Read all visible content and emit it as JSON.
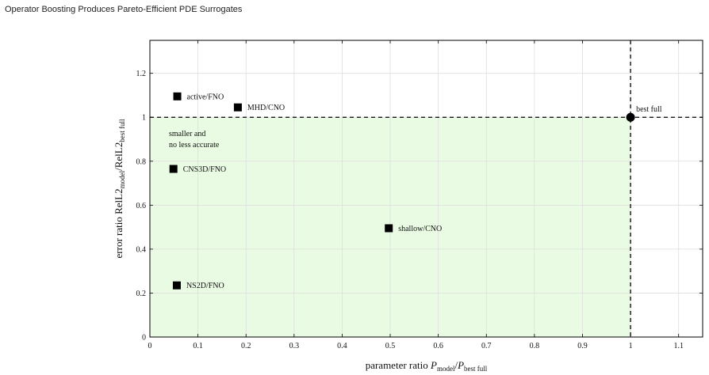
{
  "page_title": "Operator Boosting Produces Pareto-Efficient PDE Surrogates",
  "chart_data": {
    "type": "scatter",
    "xlabel": {
      "main": "parameter ratio ",
      "var": "P",
      "sub1": "model",
      "sep": "/",
      "var2": "P",
      "sub2": "best full"
    },
    "ylabel": {
      "main": "error ratio RelL2",
      "sub1": "model",
      "sep": "/RelL2",
      "sub2": "best full"
    },
    "xlim": [
      0,
      1.15
    ],
    "ylim": [
      0,
      1.35
    ],
    "xticks": [
      {
        "v": 0,
        "label": "0"
      },
      {
        "v": 0.1,
        "label": "0.1"
      },
      {
        "v": 0.2,
        "label": "0.2"
      },
      {
        "v": 0.3,
        "label": "0.3"
      },
      {
        "v": 0.4,
        "label": "0.4"
      },
      {
        "v": 0.5,
        "label": "0.5"
      },
      {
        "v": 0.6,
        "label": "0.6"
      },
      {
        "v": 0.7,
        "label": "0.7"
      },
      {
        "v": 0.8,
        "label": "0.8"
      },
      {
        "v": 0.9,
        "label": "0.9"
      },
      {
        "v": 1.0,
        "label": "1"
      },
      {
        "v": 1.1,
        "label": "1.1"
      }
    ],
    "yticks": [
      {
        "v": 0,
        "label": "0"
      },
      {
        "v": 0.2,
        "label": "0.2"
      },
      {
        "v": 0.4,
        "label": "0.4"
      },
      {
        "v": 0.6,
        "label": "0.6"
      },
      {
        "v": 0.8,
        "label": "0.8"
      },
      {
        "v": 1.0,
        "label": "1"
      },
      {
        "v": 1.2,
        "label": "1.2"
      }
    ],
    "grid": true,
    "region": {
      "label_line1": "smaller and",
      "label_line2": "no less accurate",
      "x_max": 1.0,
      "y_max": 1.0,
      "color": "#e9fbe3"
    },
    "reference_lines": {
      "x": 1.0,
      "y": 1.0
    },
    "points": [
      {
        "label": "active/FNO",
        "x": 0.057,
        "y": 1.095
      },
      {
        "label": "MHD/CNO",
        "x": 0.183,
        "y": 1.045
      },
      {
        "label": "CNS3D/FNO",
        "x": 0.049,
        "y": 0.765
      },
      {
        "label": "shallow/CNO",
        "x": 0.497,
        "y": 0.495
      },
      {
        "label": "NS2D/FNO",
        "x": 0.056,
        "y": 0.235
      }
    ],
    "reference_point": {
      "label": "best full",
      "x": 1.0,
      "y": 1.0
    }
  }
}
